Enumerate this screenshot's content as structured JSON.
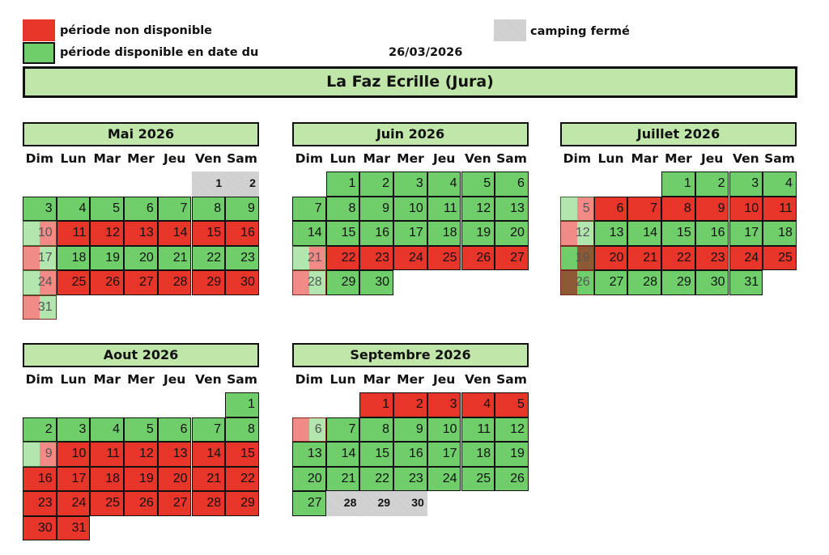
{
  "colors": {
    "g": "#6fce6a",
    "r": "#e8352a",
    "c": "#cfcfcf",
    "lg": "#b3e6af",
    "lr": "#f08b87",
    "br": "#8e5a35",
    "header": "#c1e6aa"
  },
  "legend": {
    "unavailable": "période non disponible",
    "available": "période disponible en date du",
    "date": "26/03/2026",
    "closed": "camping fermé"
  },
  "title": "La Faz Ecrille (Jura)",
  "weekdays": [
    "Dim",
    "Lun",
    "Mar",
    "Mer",
    "Jeu",
    "Ven",
    "Sam"
  ],
  "months": [
    {
      "name": "Mai 2026",
      "weeks": [
        [
          null,
          null,
          null,
          null,
          null,
          {
            "d": 1,
            "s": "c"
          },
          {
            "d": 2,
            "s": "c"
          }
        ],
        [
          {
            "d": 3,
            "s": "g"
          },
          {
            "d": 4,
            "s": "g"
          },
          {
            "d": 5,
            "s": "g"
          },
          {
            "d": 6,
            "s": "g"
          },
          {
            "d": 7,
            "s": "g"
          },
          {
            "d": 8,
            "s": "g"
          },
          {
            "d": 9,
            "s": "g"
          }
        ],
        [
          {
            "d": 10,
            "s": "lg/lr"
          },
          {
            "d": 11,
            "s": "r"
          },
          {
            "d": 12,
            "s": "r"
          },
          {
            "d": 13,
            "s": "r"
          },
          {
            "d": 14,
            "s": "r"
          },
          {
            "d": 15,
            "s": "r"
          },
          {
            "d": 16,
            "s": "r"
          }
        ],
        [
          {
            "d": 17,
            "s": "lr/lg"
          },
          {
            "d": 18,
            "s": "g"
          },
          {
            "d": 19,
            "s": "g"
          },
          {
            "d": 20,
            "s": "g"
          },
          {
            "d": 21,
            "s": "g"
          },
          {
            "d": 22,
            "s": "g"
          },
          {
            "d": 23,
            "s": "g"
          }
        ],
        [
          {
            "d": 24,
            "s": "lg/lr"
          },
          {
            "d": 25,
            "s": "r"
          },
          {
            "d": 26,
            "s": "r"
          },
          {
            "d": 27,
            "s": "r"
          },
          {
            "d": 28,
            "s": "r"
          },
          {
            "d": 29,
            "s": "r"
          },
          {
            "d": 30,
            "s": "r"
          }
        ],
        [
          {
            "d": 31,
            "s": "lr/lg"
          }
        ]
      ]
    },
    {
      "name": "Juin 2026",
      "weeks": [
        [
          null,
          {
            "d": 1,
            "s": "g"
          },
          {
            "d": 2,
            "s": "g"
          },
          {
            "d": 3,
            "s": "g"
          },
          {
            "d": 4,
            "s": "g"
          },
          {
            "d": 5,
            "s": "g"
          },
          {
            "d": 6,
            "s": "g"
          }
        ],
        [
          {
            "d": 7,
            "s": "g"
          },
          {
            "d": 8,
            "s": "g"
          },
          {
            "d": 9,
            "s": "g"
          },
          {
            "d": 10,
            "s": "g"
          },
          {
            "d": 11,
            "s": "g"
          },
          {
            "d": 12,
            "s": "g"
          },
          {
            "d": 13,
            "s": "g"
          }
        ],
        [
          {
            "d": 14,
            "s": "g"
          },
          {
            "d": 15,
            "s": "g"
          },
          {
            "d": 16,
            "s": "g"
          },
          {
            "d": 17,
            "s": "g"
          },
          {
            "d": 18,
            "s": "g"
          },
          {
            "d": 19,
            "s": "g"
          },
          {
            "d": 20,
            "s": "g"
          }
        ],
        [
          {
            "d": 21,
            "s": "lg/lr"
          },
          {
            "d": 22,
            "s": "r"
          },
          {
            "d": 23,
            "s": "r"
          },
          {
            "d": 24,
            "s": "r"
          },
          {
            "d": 25,
            "s": "r"
          },
          {
            "d": 26,
            "s": "r"
          },
          {
            "d": 27,
            "s": "r"
          }
        ],
        [
          {
            "d": 28,
            "s": "lr/lg"
          },
          {
            "d": 29,
            "s": "g"
          },
          {
            "d": 30,
            "s": "g"
          }
        ]
      ]
    },
    {
      "name": "Juillet 2026",
      "weeks": [
        [
          null,
          null,
          null,
          {
            "d": 1,
            "s": "g"
          },
          {
            "d": 2,
            "s": "g"
          },
          {
            "d": 3,
            "s": "g"
          },
          {
            "d": 4,
            "s": "g"
          }
        ],
        [
          {
            "d": 5,
            "s": "lg/lr"
          },
          {
            "d": 6,
            "s": "r"
          },
          {
            "d": 7,
            "s": "r"
          },
          {
            "d": 8,
            "s": "r"
          },
          {
            "d": 9,
            "s": "r"
          },
          {
            "d": 10,
            "s": "r"
          },
          {
            "d": 11,
            "s": "r"
          }
        ],
        [
          {
            "d": 12,
            "s": "lr/lg"
          },
          {
            "d": 13,
            "s": "g"
          },
          {
            "d": 14,
            "s": "g"
          },
          {
            "d": 15,
            "s": "g"
          },
          {
            "d": 16,
            "s": "g"
          },
          {
            "d": 17,
            "s": "g"
          },
          {
            "d": 18,
            "s": "g"
          }
        ],
        [
          {
            "d": 19,
            "s": "g/br"
          },
          {
            "d": 20,
            "s": "r"
          },
          {
            "d": 21,
            "s": "r"
          },
          {
            "d": 22,
            "s": "r"
          },
          {
            "d": 23,
            "s": "r"
          },
          {
            "d": 24,
            "s": "r"
          },
          {
            "d": 25,
            "s": "r"
          }
        ],
        [
          {
            "d": 26,
            "s": "br/g"
          },
          {
            "d": 27,
            "s": "g"
          },
          {
            "d": 28,
            "s": "g"
          },
          {
            "d": 29,
            "s": "g"
          },
          {
            "d": 30,
            "s": "g"
          },
          {
            "d": 31,
            "s": "g"
          }
        ]
      ]
    },
    {
      "name": "Aout 2026",
      "weeks": [
        [
          null,
          null,
          null,
          null,
          null,
          null,
          {
            "d": 1,
            "s": "g"
          }
        ],
        [
          {
            "d": 2,
            "s": "g"
          },
          {
            "d": 3,
            "s": "g"
          },
          {
            "d": 4,
            "s": "g"
          },
          {
            "d": 5,
            "s": "g"
          },
          {
            "d": 6,
            "s": "g"
          },
          {
            "d": 7,
            "s": "g"
          },
          {
            "d": 8,
            "s": "g"
          }
        ],
        [
          {
            "d": 9,
            "s": "lg/lr"
          },
          {
            "d": 10,
            "s": "r"
          },
          {
            "d": 11,
            "s": "r"
          },
          {
            "d": 12,
            "s": "r"
          },
          {
            "d": 13,
            "s": "r"
          },
          {
            "d": 14,
            "s": "r"
          },
          {
            "d": 15,
            "s": "r"
          }
        ],
        [
          {
            "d": 16,
            "s": "r"
          },
          {
            "d": 17,
            "s": "r"
          },
          {
            "d": 18,
            "s": "r"
          },
          {
            "d": 19,
            "s": "r"
          },
          {
            "d": 20,
            "s": "r"
          },
          {
            "d": 21,
            "s": "r"
          },
          {
            "d": 22,
            "s": "r"
          }
        ],
        [
          {
            "d": 23,
            "s": "r"
          },
          {
            "d": 24,
            "s": "r"
          },
          {
            "d": 25,
            "s": "r"
          },
          {
            "d": 26,
            "s": "r"
          },
          {
            "d": 27,
            "s": "r"
          },
          {
            "d": 28,
            "s": "r"
          },
          {
            "d": 29,
            "s": "r"
          }
        ],
        [
          {
            "d": 30,
            "s": "r"
          },
          {
            "d": 31,
            "s": "r"
          }
        ]
      ]
    },
    {
      "name": "Septembre 2026",
      "weeks": [
        [
          null,
          null,
          {
            "d": 1,
            "s": "r"
          },
          {
            "d": 2,
            "s": "r"
          },
          {
            "d": 3,
            "s": "r"
          },
          {
            "d": 4,
            "s": "r"
          },
          {
            "d": 5,
            "s": "r"
          }
        ],
        [
          {
            "d": 6,
            "s": "lr/lg"
          },
          {
            "d": 7,
            "s": "g"
          },
          {
            "d": 8,
            "s": "g"
          },
          {
            "d": 9,
            "s": "g"
          },
          {
            "d": 10,
            "s": "g"
          },
          {
            "d": 11,
            "s": "g"
          },
          {
            "d": 12,
            "s": "g"
          }
        ],
        [
          {
            "d": 13,
            "s": "g"
          },
          {
            "d": 14,
            "s": "g"
          },
          {
            "d": 15,
            "s": "g"
          },
          {
            "d": 16,
            "s": "g"
          },
          {
            "d": 17,
            "s": "g"
          },
          {
            "d": 18,
            "s": "g"
          },
          {
            "d": 19,
            "s": "g"
          }
        ],
        [
          {
            "d": 20,
            "s": "g"
          },
          {
            "d": 21,
            "s": "g"
          },
          {
            "d": 22,
            "s": "g"
          },
          {
            "d": 23,
            "s": "g"
          },
          {
            "d": 24,
            "s": "g"
          },
          {
            "d": 25,
            "s": "g"
          },
          {
            "d": 26,
            "s": "g"
          }
        ],
        [
          {
            "d": 27,
            "s": "g"
          },
          {
            "d": 28,
            "s": "c"
          },
          {
            "d": 29,
            "s": "c"
          },
          {
            "d": 30,
            "s": "c"
          }
        ]
      ]
    }
  ]
}
